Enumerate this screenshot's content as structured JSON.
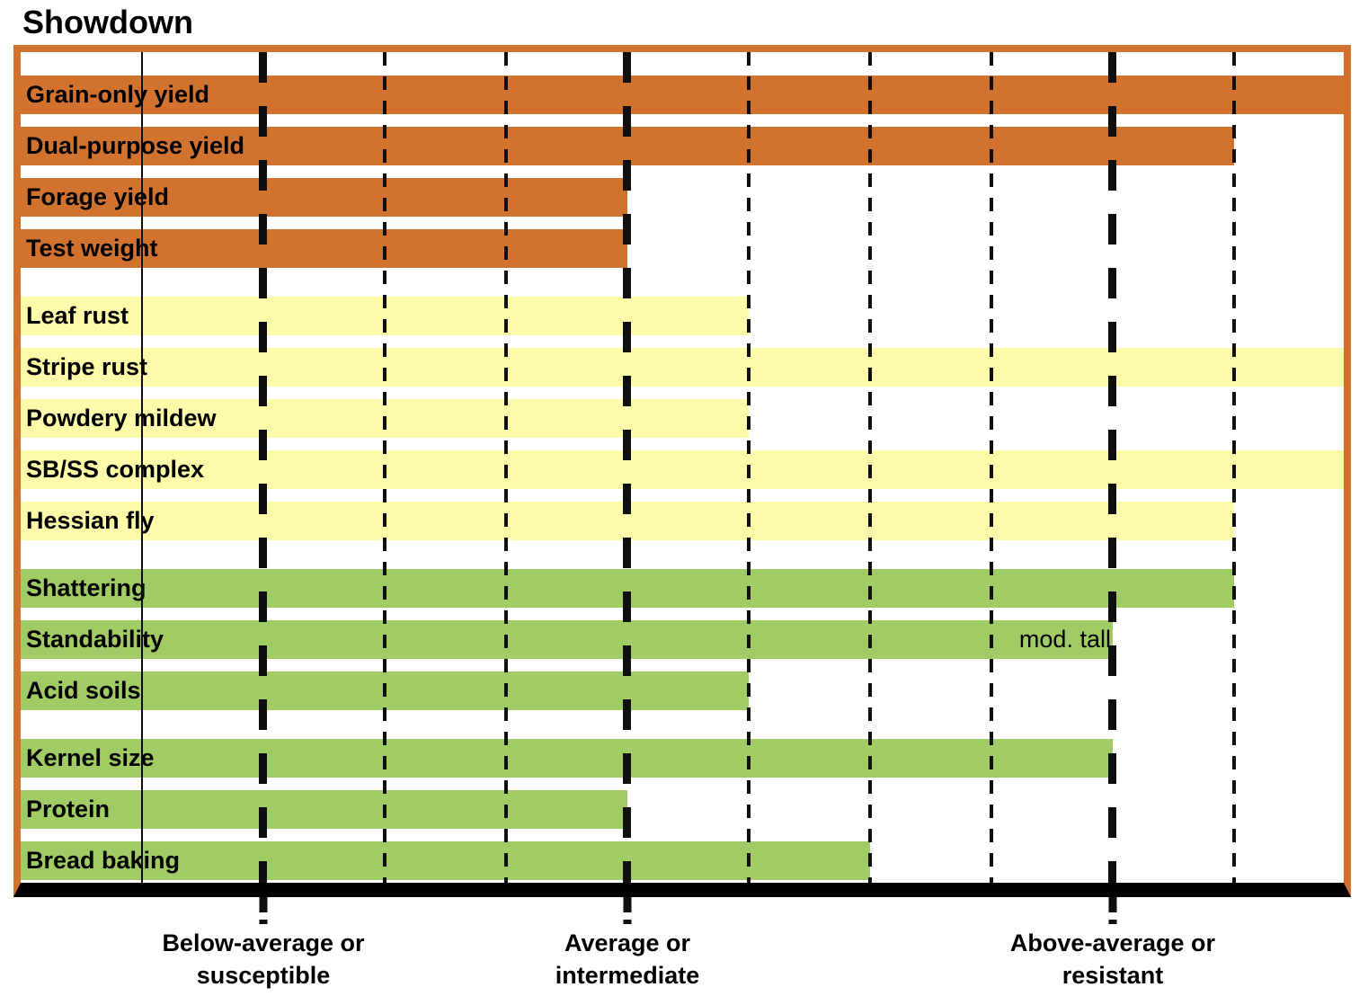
{
  "title": "Showdown",
  "colors": {
    "orange": "#D2722F",
    "yellow": "#FDFBA9",
    "green": "#A1CB64",
    "axis": "#000000",
    "border": "#D2722F"
  },
  "chart_data": {
    "type": "bar",
    "orientation": "horizontal",
    "title": "Showdown",
    "xlim": [
      0,
      11
    ],
    "unit_pct": 9.171,
    "gridlines": [
      {
        "u": 1,
        "style": "solid"
      },
      {
        "u": 2,
        "style": "thick"
      },
      {
        "u": 3,
        "style": "thin"
      },
      {
        "u": 4,
        "style": "thin"
      },
      {
        "u": 5,
        "style": "thick"
      },
      {
        "u": 6,
        "style": "thin"
      },
      {
        "u": 7,
        "style": "thin"
      },
      {
        "u": 8,
        "style": "thin"
      },
      {
        "u": 9,
        "style": "thick"
      },
      {
        "u": 10,
        "style": "thin"
      }
    ],
    "axis_markers": [
      {
        "u": 2,
        "line1": "Below-average or",
        "line2": "susceptible"
      },
      {
        "u": 5,
        "line1": "Average or",
        "line2": "intermediate"
      },
      {
        "u": 9,
        "line1": "Above-average or",
        "line2": "resistant"
      }
    ],
    "groups": [
      {
        "name": "yield-traits",
        "color": "orange",
        "bars": [
          {
            "label": "Grain-only yield",
            "value": 11,
            "full": true
          },
          {
            "label": "Dual-purpose yield",
            "value": 10
          },
          {
            "label": "Forage yield",
            "value": 5
          },
          {
            "label": "Test weight",
            "value": 5
          }
        ]
      },
      {
        "name": "disease-pest-traits",
        "color": "yellow",
        "bars": [
          {
            "label": "Leaf rust",
            "value": 6
          },
          {
            "label": "Stripe rust",
            "value": 11,
            "full": true
          },
          {
            "label": "Powdery mildew",
            "value": 6
          },
          {
            "label": "SB/SS complex",
            "value": 11,
            "full": true
          },
          {
            "label": "Hessian fly",
            "value": 10
          }
        ]
      },
      {
        "name": "agronomic-traits",
        "color": "green",
        "bars": [
          {
            "label": "Shattering",
            "value": 10
          },
          {
            "label": "Standability",
            "value": 9,
            "note": "mod. tall"
          },
          {
            "label": "Acid soils",
            "value": 6
          }
        ]
      },
      {
        "name": "quality-traits",
        "color": "green",
        "bars": [
          {
            "label": "Kernel size",
            "value": 9
          },
          {
            "label": "Protein",
            "value": 5
          },
          {
            "label": "Bread baking",
            "value": 7
          }
        ]
      }
    ]
  }
}
